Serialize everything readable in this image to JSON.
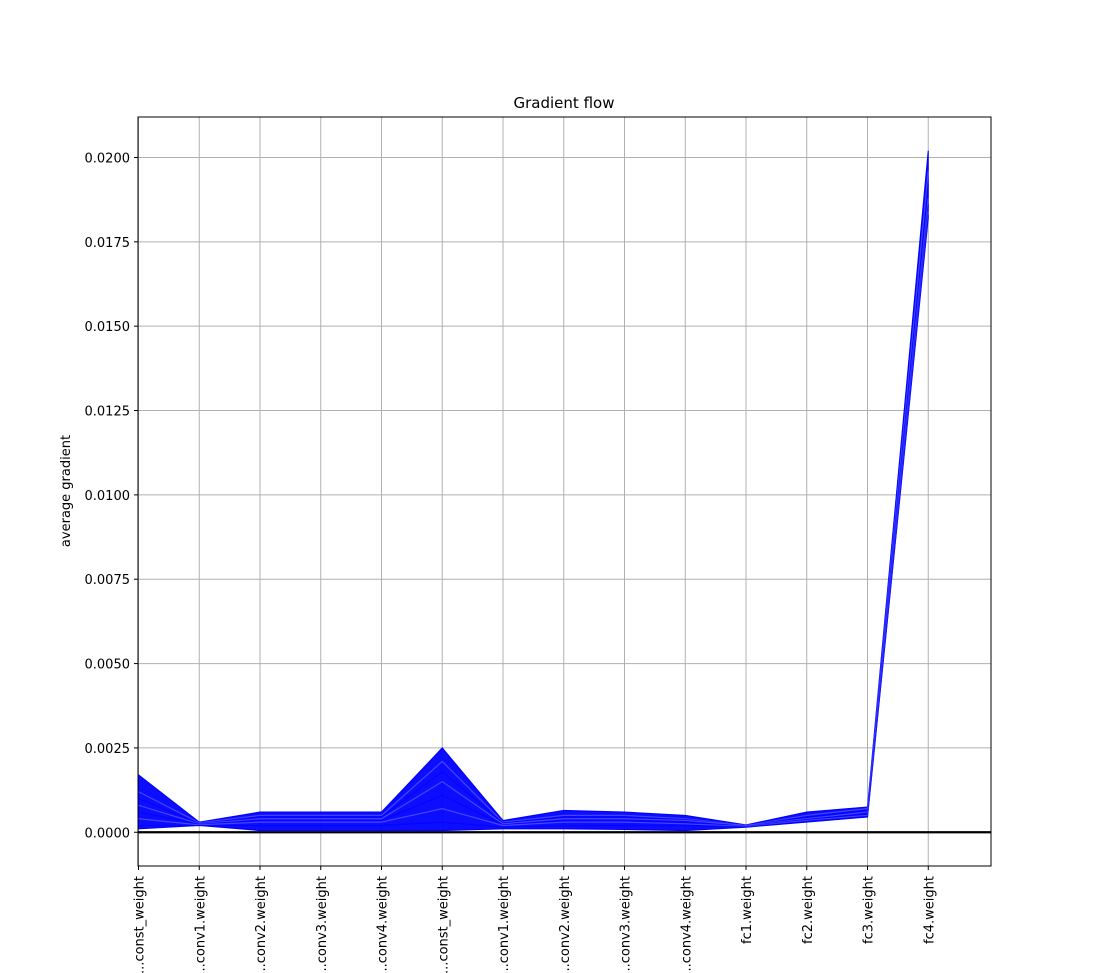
{
  "chart_data": {
    "type": "line",
    "title": "Gradient flow",
    "xlabel": "",
    "ylabel": "average gradient",
    "categories": [
      "...const_weight",
      "...conv1.weight",
      "...conv2.weight",
      "...conv3.weight",
      "...conv4.weight",
      "...const_weight",
      "...conv1.weight",
      "...conv2.weight",
      "...conv3.weight",
      "...conv4.weight",
      "fc1.weight",
      "fc2.weight",
      "fc3.weight",
      "fc4.weight"
    ],
    "ylim": [
      -0.001,
      0.0212
    ],
    "yticks": [
      "0.0000",
      "0.0025",
      "0.0050",
      "0.0075",
      "0.0100",
      "0.0125",
      "0.0150",
      "0.0175",
      "0.0200"
    ],
    "ytick_values": [
      0,
      0.0025,
      0.005,
      0.0075,
      0.01,
      0.0125,
      0.015,
      0.0175,
      0.02
    ],
    "grid": true,
    "line_color": "#0000ff",
    "zero_line_color": "#000000",
    "series_envelope": {
      "upper": [
        0.0017,
        0.0003,
        0.0006,
        0.0006,
        0.0006,
        0.0025,
        0.00035,
        0.00065,
        0.0006,
        0.0005,
        0.00022,
        0.0006,
        0.00075,
        0.0202
      ],
      "lower": [
        0.0001,
        0.0002,
        5e-05,
        5e-05,
        5e-05,
        5e-05,
        0.0001,
        0.0001,
        8e-05,
        5e-05,
        0.00015,
        0.0003,
        0.00045,
        0.0182
      ]
    },
    "series": [
      {
        "values": [
          0.0017,
          0.0003,
          0.0005,
          0.0005,
          0.0005,
          0.0025,
          0.0003,
          0.0005,
          0.0005,
          0.0004,
          0.0002,
          0.0005,
          0.0007,
          0.0202
        ]
      },
      {
        "values": [
          0.0012,
          0.00028,
          0.0005,
          0.0005,
          0.0005,
          0.0021,
          0.0003,
          0.0005,
          0.0005,
          0.0004,
          0.0002,
          0.0005,
          0.0007,
          0.0196
        ]
      },
      {
        "values": [
          0.001,
          0.00026,
          0.00045,
          0.00045,
          0.00045,
          0.0018,
          0.00028,
          0.00045,
          0.00045,
          0.00038,
          0.0002,
          0.00045,
          0.00065,
          0.0192
        ]
      },
      {
        "values": [
          0.0008,
          0.00025,
          0.0004,
          0.0004,
          0.0004,
          0.0015,
          0.00025,
          0.0004,
          0.0004,
          0.00035,
          0.0002,
          0.0004,
          0.0006,
          0.0188
        ]
      },
      {
        "values": [
          0.0006,
          0.00024,
          0.00035,
          0.00035,
          0.00035,
          0.0011,
          0.00022,
          0.00035,
          0.00035,
          0.0003,
          0.00018,
          0.00038,
          0.00055,
          0.0186
        ]
      },
      {
        "values": [
          0.0004,
          0.00022,
          0.0003,
          0.0003,
          0.0003,
          0.0007,
          0.0002,
          0.0003,
          0.0003,
          0.00025,
          0.00017,
          0.00035,
          0.0005,
          0.0184
        ]
      },
      {
        "values": [
          0.0002,
          0.0002,
          0.0002,
          0.0002,
          0.0002,
          0.0003,
          0.00015,
          0.0002,
          0.0002,
          0.0002,
          0.00016,
          0.00032,
          0.00047,
          0.0183
        ]
      }
    ]
  }
}
